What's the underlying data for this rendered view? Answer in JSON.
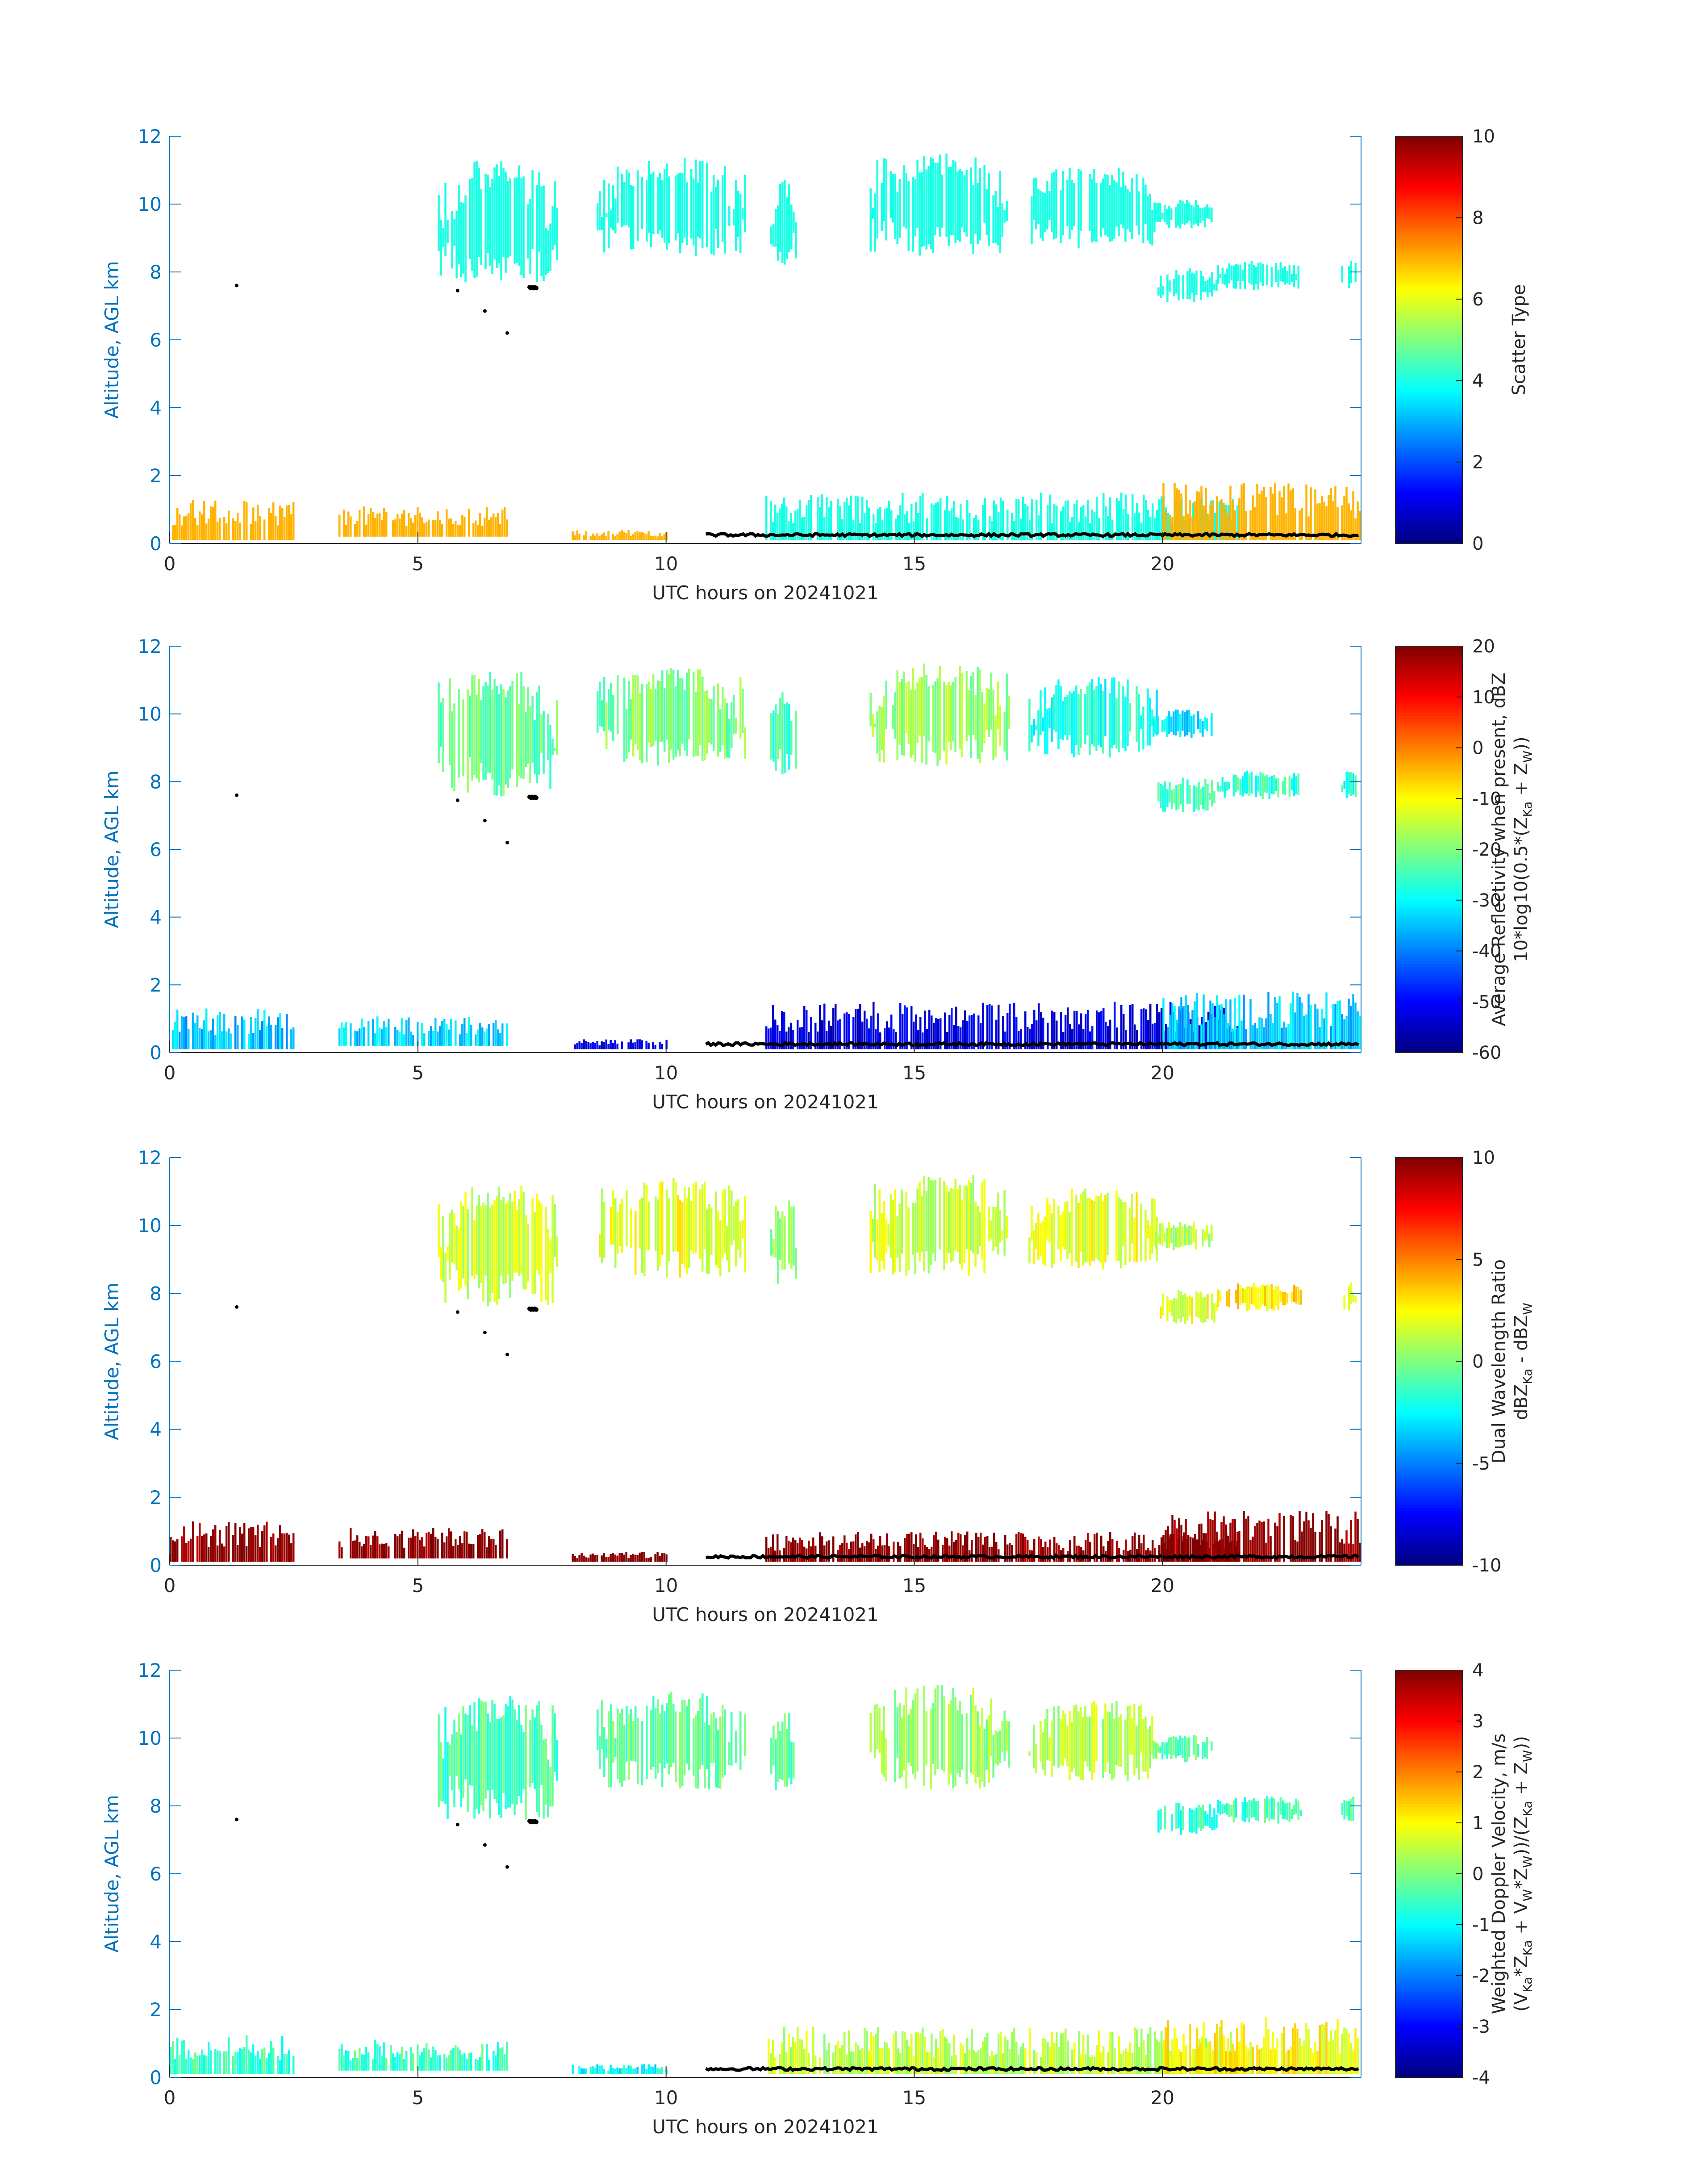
{
  "figure": {
    "date_label": "UTC hours on 20241021"
  },
  "colors": {
    "axis_blue": "#0072BD",
    "background": "#ffffff",
    "text": "#262626",
    "colormap": "jet"
  },
  "chart_data": [
    {
      "type": "heatmap",
      "panel": "scatter-type",
      "xlabel": "UTC hours on 20241021",
      "ylabel": "Altitude, AGL km",
      "xlim": [
        0,
        24
      ],
      "ylim": [
        0,
        12
      ],
      "xticks": [
        0,
        5,
        10,
        15,
        20
      ],
      "yticks": [
        0,
        2,
        4,
        6,
        8,
        10,
        12
      ],
      "colorbar": {
        "label": [
          "Scatter Type"
        ],
        "range": [
          0,
          10
        ],
        "ticks": [
          0,
          2,
          4,
          6,
          8,
          10
        ]
      },
      "features": [
        {
          "kind": "cloud",
          "x": [
            5.4,
            7.8
          ],
          "y": [
            7.2,
            11.6
          ],
          "value": 4
        },
        {
          "kind": "cloud",
          "x": [
            8.6,
            11.6
          ],
          "y": [
            8.2,
            11.6
          ],
          "value": 4
        },
        {
          "kind": "cloud",
          "x": [
            12.1,
            12.6
          ],
          "y": [
            8.0,
            11.0
          ],
          "value": 4
        },
        {
          "kind": "cloud",
          "x": [
            14.1,
            16.9
          ],
          "y": [
            8.2,
            11.8
          ],
          "value": 4
        },
        {
          "kind": "cloud",
          "x": [
            17.3,
            19.9
          ],
          "y": [
            8.5,
            11.3
          ],
          "value": 4
        },
        {
          "kind": "cloud",
          "x": [
            19.8,
            21.0
          ],
          "y": [
            9.2,
            10.2
          ],
          "value": 4
        },
        {
          "kind": "cloud",
          "x": [
            19.9,
            21.1
          ],
          "y": [
            7.0,
            8.2
          ],
          "value": 4
        },
        {
          "kind": "cloud",
          "x": [
            21.1,
            22.8
          ],
          "y": [
            7.4,
            8.4
          ],
          "value": 4
        },
        {
          "kind": "cloud",
          "x": [
            23.6,
            23.9
          ],
          "y": [
            7.4,
            8.4
          ],
          "value": 4
        },
        {
          "kind": "low",
          "x": [
            0,
            2.5
          ],
          "y": [
            0.1,
            1.3
          ],
          "value": 7
        },
        {
          "kind": "low",
          "x": [
            3.4,
            6.8
          ],
          "y": [
            0.2,
            1.1
          ],
          "value": 7
        },
        {
          "kind": "low",
          "x": [
            8.1,
            10.0
          ],
          "y": [
            0.1,
            0.4
          ],
          "value": 7
        },
        {
          "kind": "low",
          "x": [
            12.0,
            21.5
          ],
          "y": [
            0.1,
            1.5
          ],
          "value": 4
        },
        {
          "kind": "low",
          "x": [
            20.0,
            24.0
          ],
          "y": [
            0.1,
            1.8
          ],
          "value": 7
        }
      ]
    },
    {
      "type": "heatmap",
      "panel": "reflectivity",
      "xlabel": "UTC hours on 20241021",
      "ylabel": "Altitude, AGL km",
      "xlim": [
        0,
        24
      ],
      "ylim": [
        0,
        12
      ],
      "xticks": [
        0,
        5,
        10,
        15,
        20
      ],
      "yticks": [
        0,
        2,
        4,
        6,
        8,
        10,
        12
      ],
      "colorbar": {
        "label": [
          "Average Reflectivity when present, dBZ",
          "10*log10(0.5*(Z",
          "Ka",
          " + Z",
          "W",
          "))"
        ],
        "range": [
          -60,
          20
        ],
        "ticks": [
          -60,
          -50,
          -40,
          -30,
          -20,
          -10,
          0,
          10,
          20
        ]
      },
      "features": [
        {
          "kind": "cloud",
          "x": [
            5.4,
            7.8
          ],
          "y": [
            7.2,
            11.6
          ],
          "value": -22
        },
        {
          "kind": "cloud",
          "x": [
            8.6,
            11.6
          ],
          "y": [
            8.2,
            11.6
          ],
          "value": -20
        },
        {
          "kind": "cloud",
          "x": [
            12.1,
            12.6
          ],
          "y": [
            8.0,
            11.0
          ],
          "value": -25
        },
        {
          "kind": "cloud",
          "x": [
            14.1,
            16.9
          ],
          "y": [
            8.2,
            11.8
          ],
          "value": -18
        },
        {
          "kind": "cloud",
          "x": [
            17.3,
            19.9
          ],
          "y": [
            8.5,
            11.3
          ],
          "value": -28
        },
        {
          "kind": "cloud",
          "x": [
            19.8,
            21.0
          ],
          "y": [
            9.2,
            10.2
          ],
          "value": -32
        },
        {
          "kind": "cloud",
          "x": [
            19.9,
            21.1
          ],
          "y": [
            7.0,
            8.2
          ],
          "value": -24
        },
        {
          "kind": "cloud",
          "x": [
            21.1,
            22.8
          ],
          "y": [
            7.4,
            8.4
          ],
          "value": -26
        },
        {
          "kind": "cloud",
          "x": [
            23.6,
            23.9
          ],
          "y": [
            7.4,
            8.4
          ],
          "value": -28
        },
        {
          "kind": "low",
          "x": [
            0,
            2.5
          ],
          "y": [
            0.1,
            1.3
          ],
          "value": -35
        },
        {
          "kind": "low",
          "x": [
            3.4,
            6.8
          ],
          "y": [
            0.2,
            1.1
          ],
          "value": -33
        },
        {
          "kind": "low",
          "x": [
            8.1,
            10.0
          ],
          "y": [
            0.1,
            0.4
          ],
          "value": -52
        },
        {
          "kind": "low",
          "x": [
            12.0,
            21.5
          ],
          "y": [
            0.1,
            1.5
          ],
          "value": -52
        },
        {
          "kind": "low",
          "x": [
            20.0,
            24.0
          ],
          "y": [
            0.1,
            1.8
          ],
          "value": -34
        }
      ]
    },
    {
      "type": "heatmap",
      "panel": "dual-wavelength-ratio",
      "xlabel": "UTC hours on 20241021",
      "ylabel": "Altitude, AGL km",
      "xlim": [
        0,
        24
      ],
      "ylim": [
        0,
        12
      ],
      "xticks": [
        0,
        5,
        10,
        15,
        20
      ],
      "yticks": [
        0,
        2,
        4,
        6,
        8,
        10,
        12
      ],
      "colorbar": {
        "label": [
          "Dual Wavelength Ratio",
          "dBZ",
          "Ka",
          " - dBZ",
          "W",
          ""
        ],
        "range": [
          -10,
          10
        ],
        "ticks": [
          -10,
          -5,
          0,
          5,
          10
        ]
      },
      "features": [
        {
          "kind": "cloud",
          "x": [
            5.4,
            7.8
          ],
          "y": [
            7.2,
            11.6
          ],
          "value": 1.5
        },
        {
          "kind": "cloud",
          "x": [
            8.6,
            11.6
          ],
          "y": [
            8.2,
            11.6
          ],
          "value": 2
        },
        {
          "kind": "cloud",
          "x": [
            12.1,
            12.6
          ],
          "y": [
            8.0,
            11.0
          ],
          "value": 0
        },
        {
          "kind": "cloud",
          "x": [
            14.1,
            16.9
          ],
          "y": [
            8.2,
            11.8
          ],
          "value": 1.5
        },
        {
          "kind": "cloud",
          "x": [
            17.3,
            19.9
          ],
          "y": [
            8.5,
            11.3
          ],
          "value": 2
        },
        {
          "kind": "cloud",
          "x": [
            19.8,
            21.0
          ],
          "y": [
            9.2,
            10.2
          ],
          "value": 1
        },
        {
          "kind": "cloud",
          "x": [
            19.9,
            21.1
          ],
          "y": [
            7.0,
            8.2
          ],
          "value": 2
        },
        {
          "kind": "cloud",
          "x": [
            21.1,
            22.8
          ],
          "y": [
            7.4,
            8.4
          ],
          "value": 3
        },
        {
          "kind": "cloud",
          "x": [
            23.6,
            23.9
          ],
          "y": [
            7.4,
            8.4
          ],
          "value": 2
        },
        {
          "kind": "low",
          "x": [
            0,
            2.5
          ],
          "y": [
            0.1,
            1.3
          ],
          "value": 10
        },
        {
          "kind": "low",
          "x": [
            3.4,
            6.8
          ],
          "y": [
            0.2,
            1.1
          ],
          "value": 10
        },
        {
          "kind": "low",
          "x": [
            8.1,
            10.0
          ],
          "y": [
            0.1,
            0.4
          ],
          "value": 10
        },
        {
          "kind": "low",
          "x": [
            12.0,
            21.5
          ],
          "y": [
            0.1,
            1.0
          ],
          "value": 10
        },
        {
          "kind": "low",
          "x": [
            20.0,
            24.0
          ],
          "y": [
            0.1,
            1.6
          ],
          "value": 10
        }
      ]
    },
    {
      "type": "heatmap",
      "panel": "doppler-velocity",
      "xlabel": "UTC hours on 20241021",
      "ylabel": "Altitude, AGL km",
      "xlim": [
        0,
        24
      ],
      "ylim": [
        0,
        12
      ],
      "xticks": [
        0,
        5,
        10,
        15,
        20
      ],
      "yticks": [
        0,
        2,
        4,
        6,
        8,
        10,
        12
      ],
      "colorbar": {
        "label": [
          "Weighted Doppler Velocity, m/s",
          "(V",
          "Ka",
          "*Z",
          "Ka",
          " + V",
          "W",
          "*Z",
          "W",
          "))/(Z",
          "Ka",
          " + Z",
          "W",
          "))"
        ],
        "range": [
          -4,
          4
        ],
        "ticks": [
          -4,
          -3,
          -2,
          -1,
          0,
          1,
          2,
          3,
          4
        ]
      },
      "features": [
        {
          "kind": "cloud",
          "x": [
            5.4,
            7.8
          ],
          "y": [
            7.2,
            11.6
          ],
          "value": -0.4
        },
        {
          "kind": "cloud",
          "x": [
            8.6,
            11.6
          ],
          "y": [
            8.2,
            11.6
          ],
          "value": -0.2
        },
        {
          "kind": "cloud",
          "x": [
            12.1,
            12.6
          ],
          "y": [
            8.0,
            11.0
          ],
          "value": -0.3
        },
        {
          "kind": "cloud",
          "x": [
            14.1,
            16.9
          ],
          "y": [
            8.2,
            11.8
          ],
          "value": 0.2
        },
        {
          "kind": "cloud",
          "x": [
            17.3,
            19.9
          ],
          "y": [
            8.5,
            11.3
          ],
          "value": 0.4
        },
        {
          "kind": "cloud",
          "x": [
            19.8,
            21.0
          ],
          "y": [
            9.2,
            10.2
          ],
          "value": -0.2
        },
        {
          "kind": "cloud",
          "x": [
            19.9,
            21.1
          ],
          "y": [
            7.0,
            8.2
          ],
          "value": -0.6
        },
        {
          "kind": "cloud",
          "x": [
            21.1,
            22.8
          ],
          "y": [
            7.4,
            8.4
          ],
          "value": -0.5
        },
        {
          "kind": "cloud",
          "x": [
            23.6,
            23.9
          ],
          "y": [
            7.4,
            8.4
          ],
          "value": -0.4
        },
        {
          "kind": "low",
          "x": [
            0,
            2.5
          ],
          "y": [
            0.1,
            1.3
          ],
          "value": -0.6
        },
        {
          "kind": "low",
          "x": [
            3.4,
            6.8
          ],
          "y": [
            0.2,
            1.1
          ],
          "value": -0.5
        },
        {
          "kind": "low",
          "x": [
            8.1,
            10.0
          ],
          "y": [
            0.1,
            0.4
          ],
          "value": -1
        },
        {
          "kind": "low",
          "x": [
            12.0,
            21.5
          ],
          "y": [
            0.1,
            1.5
          ],
          "value": 0.5
        },
        {
          "kind": "low",
          "x": [
            20.0,
            24.0
          ],
          "y": [
            0.1,
            1.8
          ],
          "value": 1
        }
      ]
    }
  ],
  "surface_markers": {
    "dots_hours": [
      1.35,
      5.8,
      6.35,
      6.8
    ],
    "dots_km": [
      7.6,
      7.45,
      6.85,
      6.2
    ],
    "cluster_hours": 7.25,
    "cluster_km": 7.55,
    "ground_line_hours": [
      10.8,
      24.0
    ],
    "ground_line_km": 0.25
  }
}
